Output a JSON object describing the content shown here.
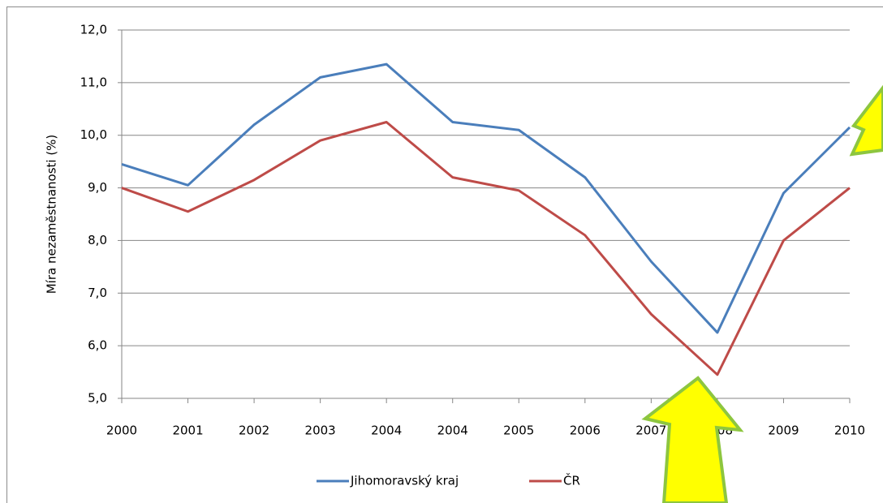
{
  "chart_data": {
    "type": "line",
    "y_label": "Míra nezaměstnanosti (%)",
    "categories": [
      "2000",
      "2001",
      "2002",
      "2003",
      "2004",
      "2004",
      "2005",
      "2006",
      "2007",
      "2008",
      "2009",
      "2010"
    ],
    "series": [
      {
        "name": "Jihomoravský kraj",
        "color": "#4a7ebb",
        "values": [
          9.45,
          9.05,
          10.2,
          11.1,
          11.35,
          10.25,
          10.1,
          9.2,
          7.6,
          6.25,
          8.9,
          10.15
        ]
      },
      {
        "name": "ČR",
        "color": "#be4b48",
        "values": [
          9.0,
          8.55,
          9.15,
          9.9,
          10.25,
          9.2,
          8.95,
          8.1,
          6.6,
          5.45,
          8.0,
          9.0
        ]
      }
    ],
    "ylim": [
      5,
      12
    ],
    "yticks": [
      {
        "value": 5,
        "label": "5,0"
      },
      {
        "value": 6,
        "label": "6,0"
      },
      {
        "value": 7,
        "label": "7,0"
      },
      {
        "value": 8,
        "label": "8,0"
      },
      {
        "value": 9,
        "label": "9,0"
      },
      {
        "value": 10,
        "label": "10,0"
      },
      {
        "value": 11,
        "label": "11,0"
      },
      {
        "value": 12,
        "label": "12,0"
      }
    ],
    "grid": true,
    "legend": "bottom"
  }
}
